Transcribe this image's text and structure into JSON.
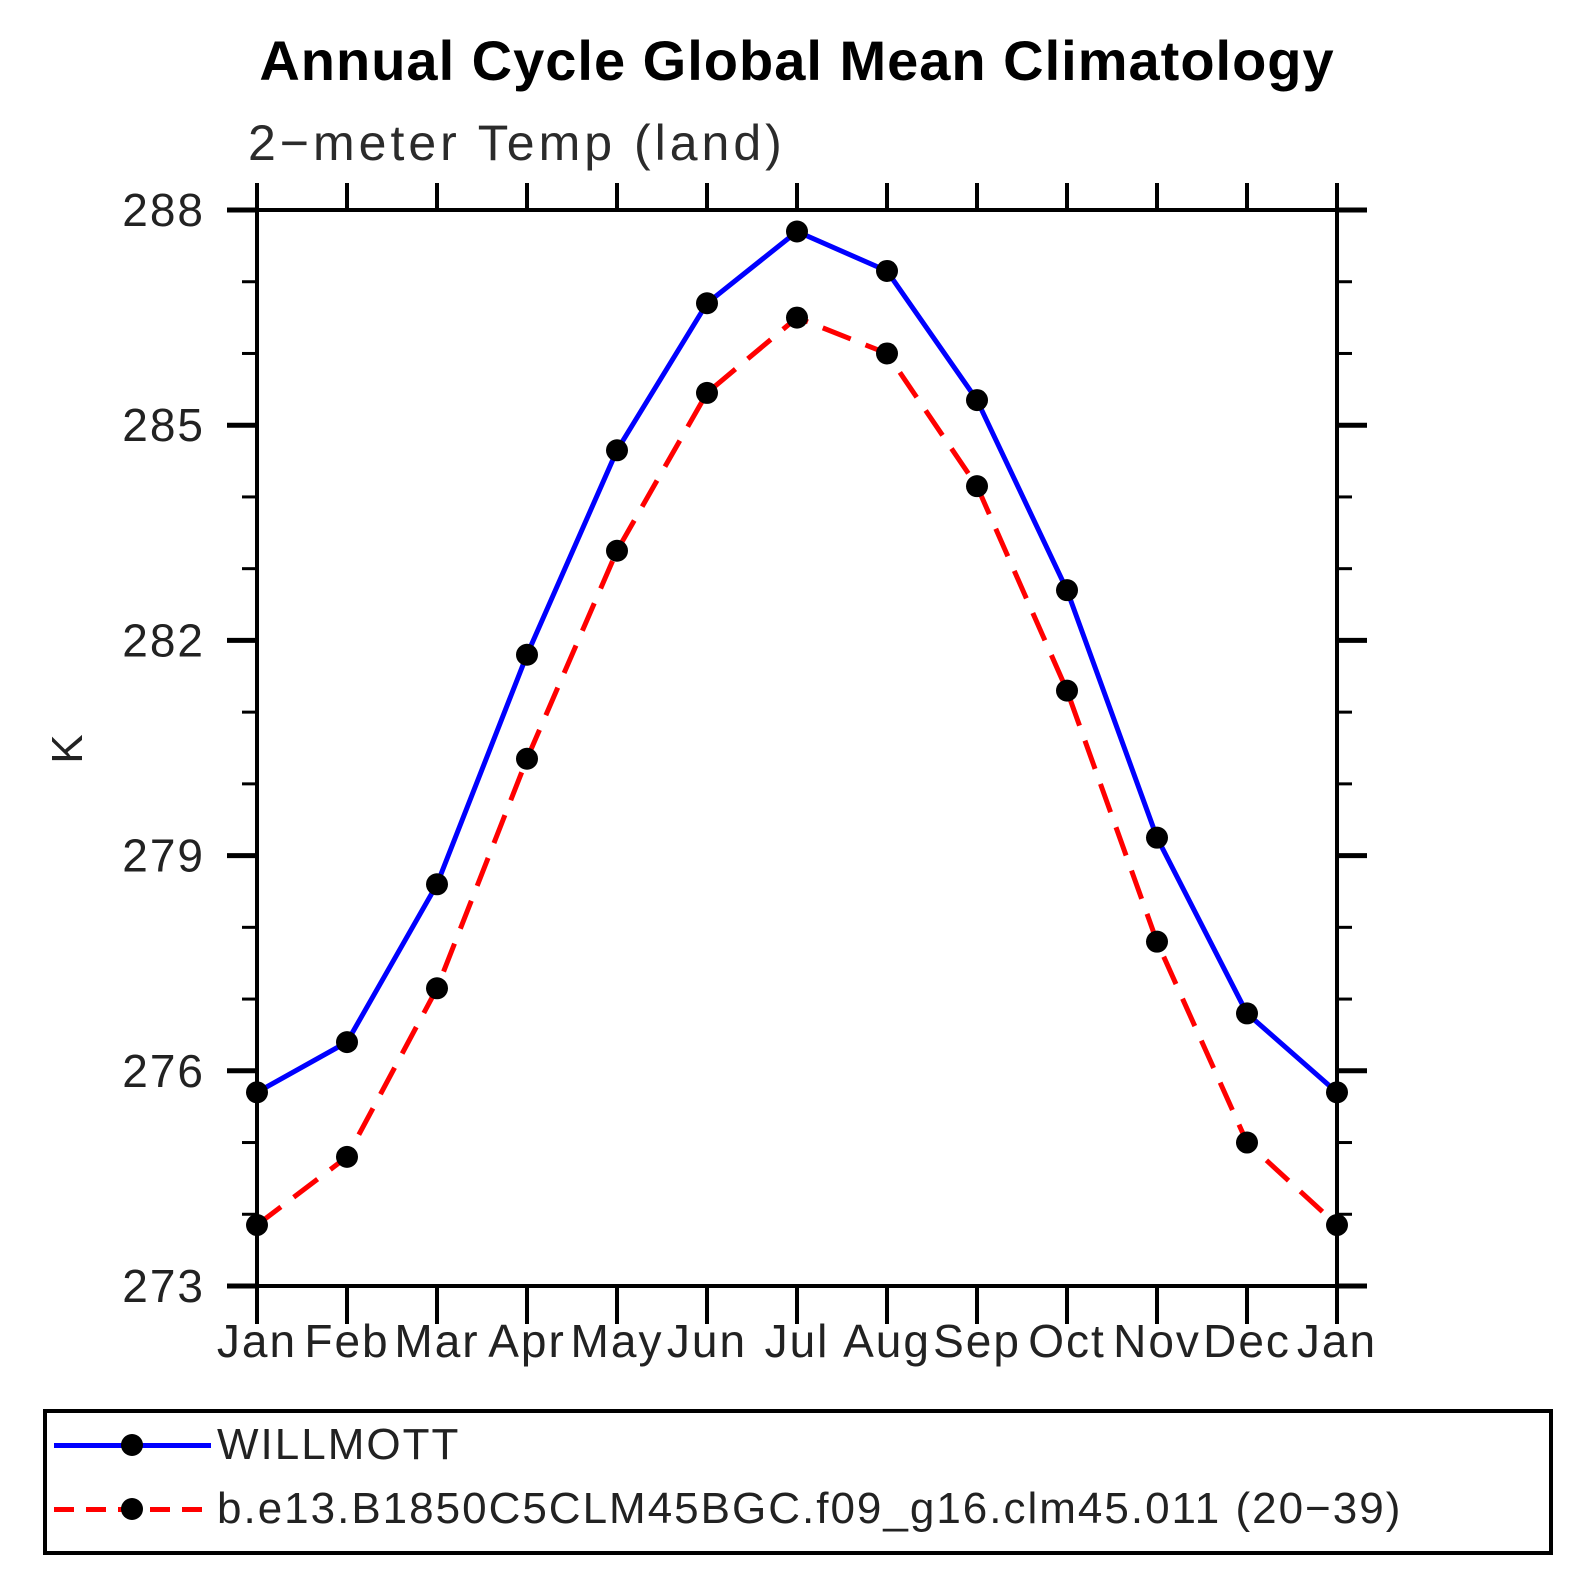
{
  "title": "Annual Cycle Global Mean Climatology",
  "chart_data": {
    "type": "line",
    "title": "Annual Cycle Global Mean Climatology",
    "subtitle": "2−meter Temp (land)",
    "ylabel": "K",
    "xlabel": "",
    "categories": [
      "Jan",
      "Feb",
      "Mar",
      "Apr",
      "May",
      "Jun",
      "Jul",
      "Aug",
      "Sep",
      "Oct",
      "Nov",
      "Dec",
      "Jan"
    ],
    "ylim": [
      273,
      288
    ],
    "ytick_major_step": 3,
    "ytick_minor_step": 1,
    "grid": false,
    "legend_position": "bottom",
    "marker": "circle",
    "marker_color": "#000000",
    "series": [
      {
        "name": "WILLMOTT",
        "color": "#0000ff",
        "line_style": "solid",
        "values": [
          275.7,
          276.4,
          278.6,
          281.8,
          284.65,
          286.7,
          287.7,
          287.15,
          285.35,
          282.7,
          279.25,
          276.8,
          275.7
        ]
      },
      {
        "name": "b.e13.B1850C5CLM45BGC.f09_g16.clm45.011 (20−39)",
        "color": "#ff0000",
        "line_style": "dashed",
        "values": [
          273.85,
          274.8,
          277.15,
          280.35,
          283.25,
          285.45,
          286.5,
          286.0,
          284.15,
          281.3,
          277.8,
          275.0,
          273.85
        ]
      }
    ]
  }
}
